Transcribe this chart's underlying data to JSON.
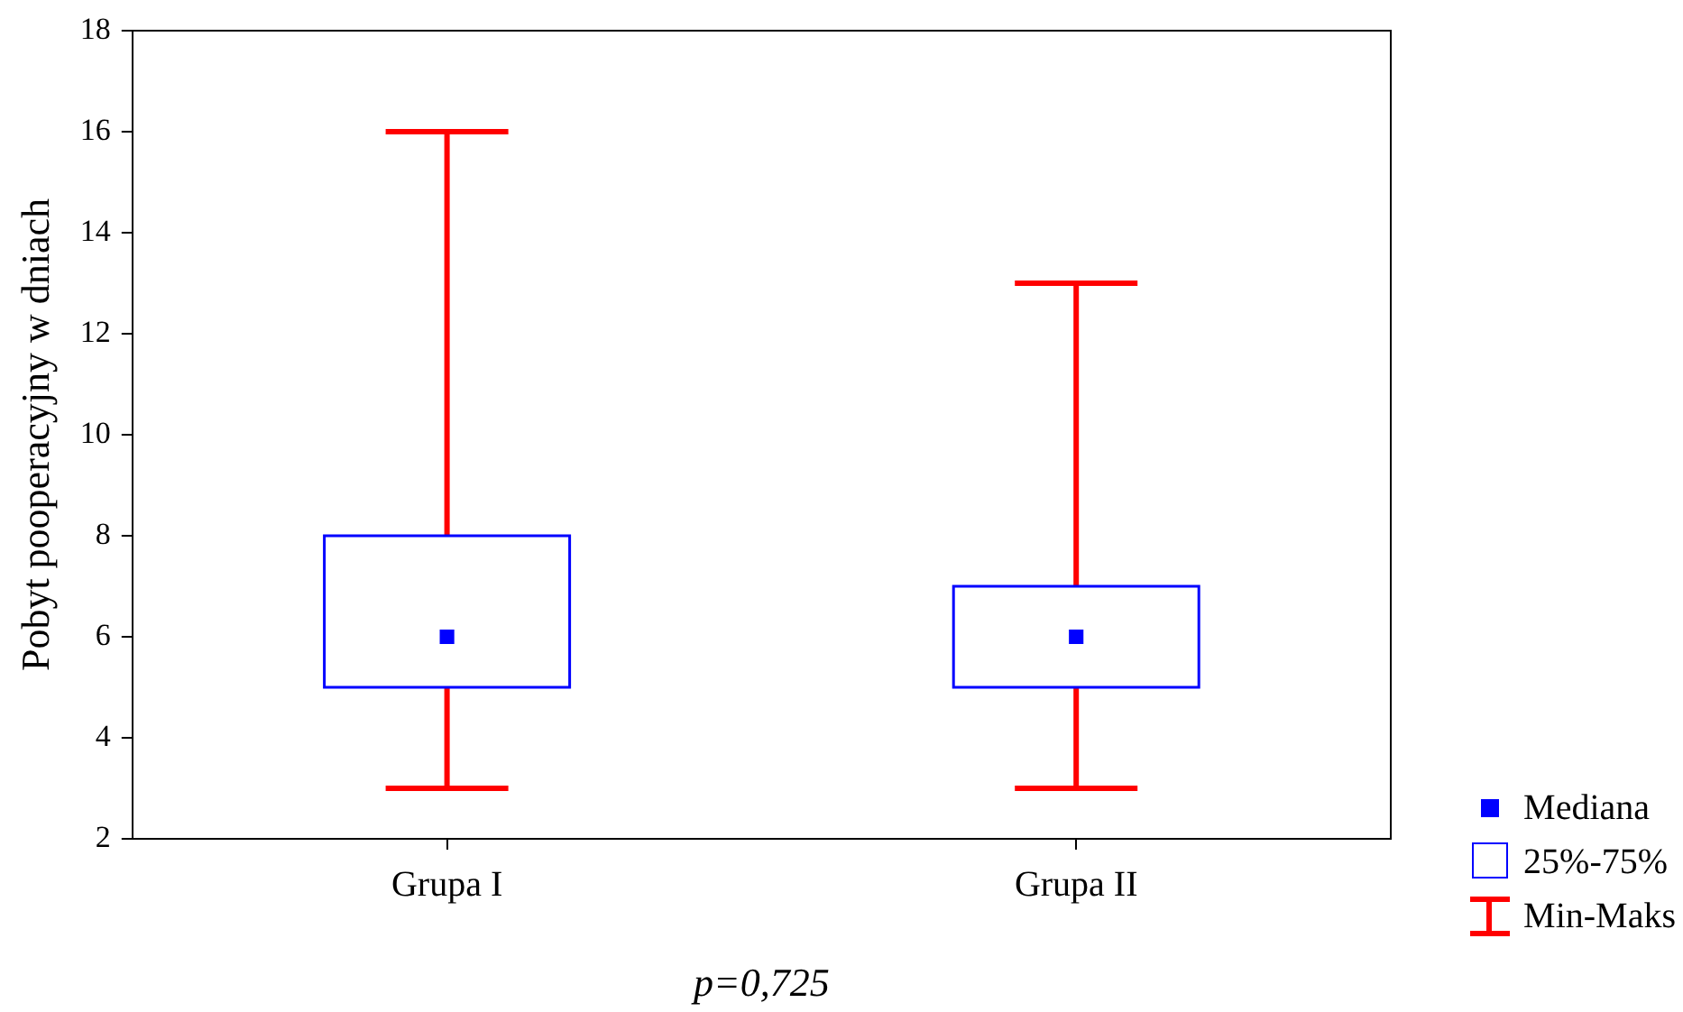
{
  "chart_data": {
    "type": "box",
    "ylabel": "Pobyt pooperacyjny w dniach",
    "categories": [
      "Grupa I",
      "Grupa II"
    ],
    "series": [
      {
        "color": "#0000ff",
        "boxes": [
          {
            "low": 3,
            "q1": 5,
            "median": 6,
            "q3": 8,
            "high": 16
          },
          {
            "low": 3,
            "q1": 5,
            "median": 6,
            "q3": 7,
            "high": 13
          }
        ]
      }
    ],
    "ylim": [
      2,
      18
    ],
    "yticks": [
      2,
      4,
      6,
      8,
      10,
      12,
      14,
      16,
      18
    ],
    "grid": false,
    "marker": "square",
    "annotations": [
      "p=0,725",
      "Mediana",
      "25%-75%",
      "Min-Maks"
    ]
  }
}
